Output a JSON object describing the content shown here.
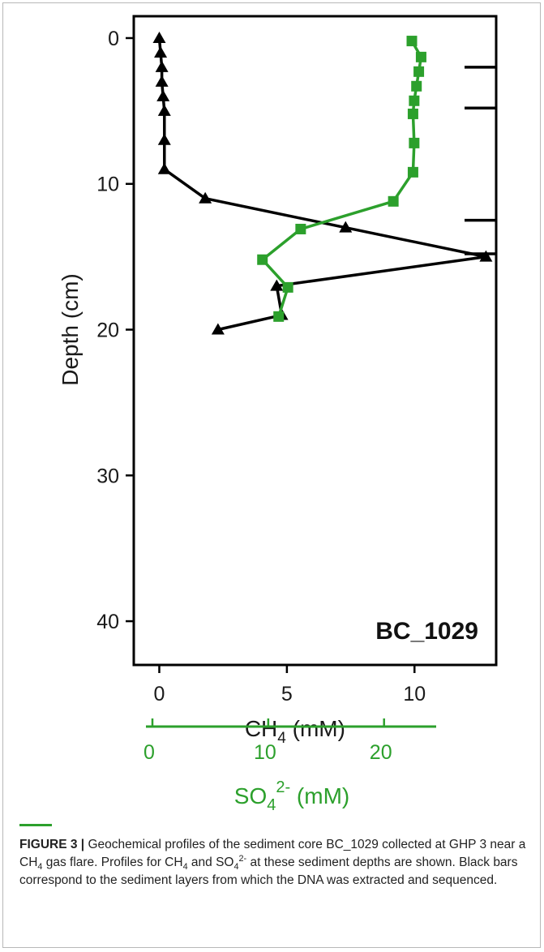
{
  "colors": {
    "ch4": "#000000",
    "so4": "#2ca02c",
    "axis": "#000000"
  },
  "chart_data": {
    "type": "line",
    "panel_label": "BC_1029",
    "y_axis": {
      "label": "Depth (cm)",
      "reversed": true,
      "ylim": [
        -1.5,
        43
      ],
      "ticks": [
        0,
        10,
        20,
        30,
        40
      ]
    },
    "x_axis_primary": {
      "label": "CH",
      "label_sub": "4",
      "label_unit": " (mM)",
      "xlim": [
        -1.0,
        13.2
      ],
      "ticks": [
        0,
        5,
        10
      ]
    },
    "x_axis_secondary": {
      "label": "SO",
      "label_sub": "4",
      "label_sup": "2-",
      "label_unit": " (mM)",
      "xlim": [
        0,
        24.5
      ],
      "ticks": [
        0,
        10,
        20
      ],
      "color": "#2ca02c"
    },
    "series": [
      {
        "name": "CH4",
        "axis": "primary",
        "marker": "triangle",
        "color": "#000000",
        "points": [
          {
            "x": 0.0,
            "y": 0
          },
          {
            "x": 0.05,
            "y": 1
          },
          {
            "x": 0.1,
            "y": 2
          },
          {
            "x": 0.1,
            "y": 3
          },
          {
            "x": 0.15,
            "y": 4
          },
          {
            "x": 0.2,
            "y": 5
          },
          {
            "x": 0.2,
            "y": 7
          },
          {
            "x": 0.2,
            "y": 9
          },
          {
            "x": 1.8,
            "y": 11
          },
          {
            "x": 7.3,
            "y": 13
          },
          {
            "x": 12.8,
            "y": 15
          },
          {
            "x": 4.6,
            "y": 17
          },
          {
            "x": 4.8,
            "y": 19
          },
          {
            "x": 2.3,
            "y": 20
          }
        ]
      },
      {
        "name": "SO42-",
        "axis": "secondary",
        "marker": "square",
        "color": "#2ca02c",
        "points": [
          {
            "x": 22.4,
            "y": 0.2
          },
          {
            "x": 23.2,
            "y": 1.3
          },
          {
            "x": 23.0,
            "y": 2.3
          },
          {
            "x": 22.8,
            "y": 3.3
          },
          {
            "x": 22.6,
            "y": 4.3
          },
          {
            "x": 22.5,
            "y": 5.2
          },
          {
            "x": 22.6,
            "y": 7.2
          },
          {
            "x": 22.5,
            "y": 9.2
          },
          {
            "x": 20.8,
            "y": 11.2
          },
          {
            "x": 12.8,
            "y": 13.1
          },
          {
            "x": 9.5,
            "y": 15.2
          },
          {
            "x": 11.7,
            "y": 17.1
          },
          {
            "x": 10.9,
            "y": 19.1
          }
        ]
      }
    ],
    "sequenced_layer_bars": [
      2,
      4.8,
      12.5,
      14.8
    ]
  },
  "caption": {
    "figure_label": "FIGURE 3 |",
    "text_html": "Geochemical profiles of the sediment core BC_1029 collected at GHP 3 near a CH<sub>4</sub> gas flare. Profiles for CH<sub>4</sub> and SO<sub>4</sub><sup>2-</sup> at these sediment depths are shown. Black bars correspond to the sediment layers from which the DNA was extracted and sequenced."
  }
}
